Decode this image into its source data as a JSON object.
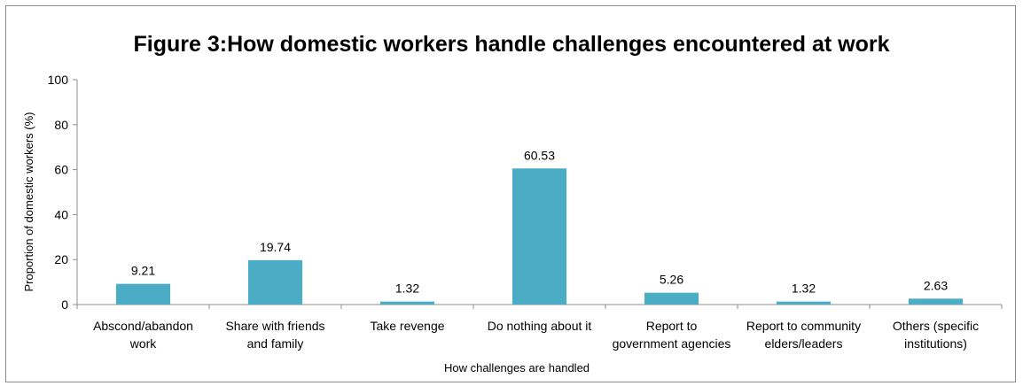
{
  "chart_data": {
    "type": "bar",
    "title": "Figure 3:How domestic workers handle challenges encountered at work",
    "xlabel": "How challenges are handled",
    "ylabel": "Proportion of domestic workers (%)",
    "ylim": [
      0,
      100
    ],
    "yticks": [
      "0",
      "20",
      "40",
      "60",
      "80",
      "100"
    ],
    "grid": false,
    "legend": "none",
    "bar_color": "#4bacc6",
    "categories": [
      [
        "Abscond/abandon",
        "work"
      ],
      [
        "Share with friends",
        "and family"
      ],
      [
        "Take revenge"
      ],
      [
        "Do nothing about it"
      ],
      [
        "Report to",
        "government agencies"
      ],
      [
        "Report to community",
        "elders/leaders"
      ],
      [
        "Others (specific",
        "institutions)"
      ]
    ],
    "values": [
      9.21,
      19.74,
      1.32,
      60.53,
      5.26,
      1.32,
      2.63
    ],
    "data_labels": [
      "9.21",
      "19.74",
      "1.32",
      "60.53",
      "5.26",
      "1.32",
      "2.63"
    ]
  }
}
